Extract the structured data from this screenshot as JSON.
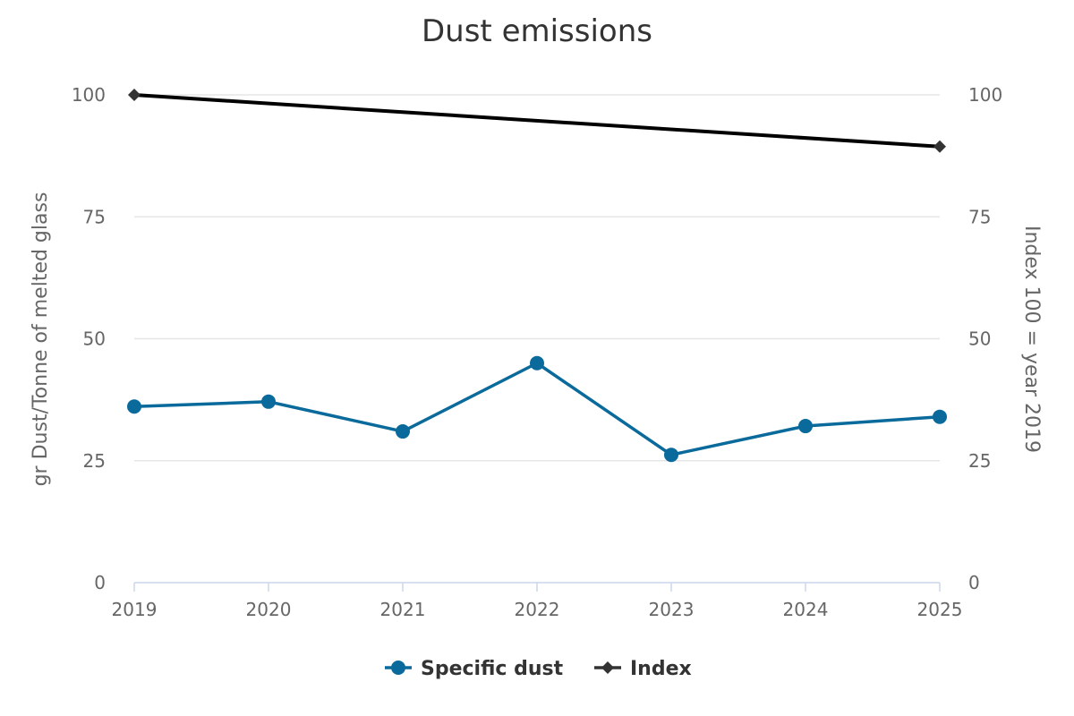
{
  "chart_data": {
    "type": "line",
    "title": "Dust emissions",
    "categories": [
      "2019",
      "2020",
      "2021",
      "2022",
      "2023",
      "2024",
      "2025"
    ],
    "y_left": {
      "label": "gr Dust/Tonne of melted glass",
      "min": 0,
      "max": 100,
      "ticks": [
        "0",
        "25",
        "50",
        "75",
        "100"
      ]
    },
    "y_right": {
      "label": "Index 100 = year 2019",
      "min": 0,
      "max": 100,
      "ticks": [
        "0",
        "25",
        "50",
        "75",
        "100"
      ]
    },
    "series": [
      {
        "name": "Specific dust",
        "axis": "left",
        "color": "#0a6a9b",
        "marker": "circle",
        "values": [
          36.1,
          37.1,
          31.0,
          45.0,
          26.2,
          32.1,
          34.0
        ]
      },
      {
        "name": "Index",
        "axis": "right",
        "color": "#000000",
        "marker": "diamond",
        "points": [
          {
            "x": "2019",
            "y": 100
          },
          {
            "x": "2025",
            "y": 89.4
          }
        ]
      }
    ],
    "grid": true,
    "legend_position": "bottom-center"
  }
}
